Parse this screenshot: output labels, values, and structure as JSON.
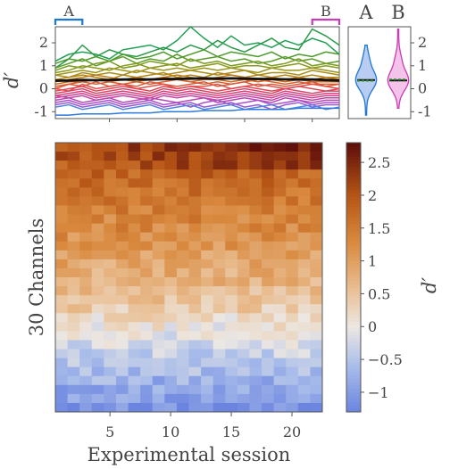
{
  "chart_data": [
    {
      "type": "line",
      "ylabel": "d′",
      "xlim": [
        1,
        22
      ],
      "ylim": [
        -1.3,
        2.7
      ],
      "yticks": [
        -1,
        0,
        1,
        2
      ],
      "x": [
        1,
        2,
        3,
        4,
        5,
        6,
        7,
        8,
        9,
        10,
        11,
        12,
        13,
        14,
        15,
        16,
        17,
        18,
        19,
        20,
        21,
        22
      ],
      "brackets": [
        {
          "label": "A",
          "from": 1,
          "to": 3,
          "color": "#1f77d4"
        },
        {
          "label": "B",
          "from": 20,
          "to": 22,
          "color": "#c83cb4"
        }
      ],
      "mean": {
        "color": "#111111",
        "values": [
          0.35,
          0.36,
          0.38,
          0.37,
          0.38,
          0.4,
          0.41,
          0.4,
          0.42,
          0.43,
          0.44,
          0.45,
          0.44,
          0.45,
          0.44,
          0.43,
          0.42,
          0.41,
          0.4,
          0.4,
          0.38,
          0.36
        ]
      },
      "series": [
        {
          "color": "#22a055",
          "values": [
            1.2,
            1.5,
            1.6,
            1.5,
            1.3,
            1.7,
            1.8,
            1.9,
            1.7,
            2.1,
            2.7,
            2.2,
            1.8,
            2.3,
            1.9,
            2.0,
            1.8,
            2.1,
            1.9,
            2.2,
            2.0,
            1.5
          ]
        },
        {
          "color": "#2a9a48",
          "values": [
            0.9,
            1.3,
            1.9,
            1.4,
            1.7,
            1.5,
            1.4,
            1.6,
            1.8,
            1.6,
            1.9,
            1.7,
            2.1,
            1.8,
            1.6,
            1.9,
            2.2,
            1.8,
            1.7,
            2.6,
            2.3,
            1.9
          ]
        },
        {
          "color": "#4c9a2a",
          "values": [
            1.1,
            1.3,
            1.2,
            1.4,
            1.2,
            1.5,
            1.3,
            1.4,
            1.6,
            1.3,
            1.5,
            1.7,
            1.4,
            1.6,
            1.5,
            1.4,
            1.6,
            1.3,
            1.5,
            1.4,
            1.6,
            1.5
          ]
        },
        {
          "color": "#5a9c2a",
          "values": [
            0.9,
            1.1,
            1.3,
            1.0,
            1.2,
            1.4,
            1.1,
            1.3,
            1.2,
            1.5,
            1.2,
            1.3,
            1.4,
            1.2,
            1.3,
            1.1,
            1.2,
            1.4,
            1.2,
            1.3,
            1.1,
            1.2
          ]
        },
        {
          "color": "#7a9a20",
          "values": [
            0.8,
            1.0,
            0.9,
            1.1,
            1.2,
            0.9,
            1.0,
            1.2,
            1.1,
            1.0,
            1.3,
            1.1,
            1.2,
            1.0,
            1.1,
            1.2,
            1.0,
            1.1,
            1.3,
            1.0,
            1.1,
            1.0
          ]
        },
        {
          "color": "#8a9a1c",
          "values": [
            0.7,
            0.8,
            1.0,
            0.9,
            0.8,
            1.0,
            1.1,
            0.9,
            1.0,
            1.1,
            0.9,
            1.0,
            1.1,
            0.9,
            1.0,
            1.0,
            0.9,
            1.0,
            1.1,
            0.9,
            1.0,
            0.9
          ]
        },
        {
          "color": "#9a9418",
          "values": [
            0.6,
            0.7,
            0.8,
            0.7,
            0.9,
            0.8,
            0.7,
            0.9,
            0.8,
            0.9,
            0.8,
            0.9,
            0.8,
            0.9,
            0.8,
            0.7,
            0.9,
            0.8,
            0.8,
            0.9,
            0.8,
            0.7
          ]
        },
        {
          "color": "#a88e16",
          "values": [
            0.6,
            0.5,
            0.7,
            0.6,
            0.7,
            0.6,
            0.8,
            0.7,
            0.6,
            0.7,
            0.8,
            0.7,
            0.6,
            0.7,
            0.8,
            0.6,
            0.7,
            0.7,
            0.6,
            0.8,
            0.7,
            0.6
          ]
        },
        {
          "color": "#b48414",
          "values": [
            0.4,
            0.5,
            0.6,
            0.5,
            0.4,
            0.6,
            0.5,
            0.6,
            0.7,
            0.5,
            0.6,
            0.5,
            0.7,
            0.6,
            0.5,
            0.6,
            0.5,
            0.6,
            0.5,
            0.6,
            0.5,
            0.5
          ]
        },
        {
          "color": "#c07a18",
          "values": [
            0.3,
            0.4,
            0.5,
            0.6,
            0.5,
            0.4,
            0.5,
            0.4,
            0.5,
            0.6,
            0.5,
            0.4,
            0.5,
            0.6,
            0.5,
            0.4,
            0.5,
            0.4,
            0.5,
            0.4,
            0.5,
            0.4
          ]
        },
        {
          "color": "#cc6c20",
          "values": [
            0.2,
            0.3,
            0.3,
            0.4,
            0.3,
            0.4,
            0.3,
            0.4,
            0.5,
            0.4,
            0.3,
            0.4,
            0.4,
            0.3,
            0.4,
            0.3,
            0.4,
            0.3,
            0.4,
            0.3,
            0.3,
            0.3
          ]
        },
        {
          "color": "#d6622e",
          "values": [
            0.1,
            0.2,
            0.3,
            0.2,
            0.3,
            0.2,
            0.3,
            0.2,
            0.3,
            0.4,
            0.3,
            0.2,
            0.3,
            0.2,
            0.3,
            0.4,
            0.3,
            0.2,
            0.3,
            0.2,
            0.2,
            0.2
          ]
        },
        {
          "color": "#dc5a3c",
          "values": [
            0.0,
            0.2,
            0.1,
            0.3,
            0.1,
            0.2,
            0.1,
            0.3,
            0.2,
            0.1,
            0.2,
            0.3,
            0.1,
            0.2,
            0.3,
            0.1,
            0.2,
            0.1,
            0.2,
            0.3,
            0.1,
            0.2
          ]
        },
        {
          "color": "#e05248",
          "values": [
            0.0,
            -0.1,
            0.2,
            0.0,
            0.1,
            0.2,
            0.0,
            0.1,
            0.2,
            0.0,
            0.1,
            0.1,
            0.2,
            0.0,
            0.1,
            0.2,
            0.1,
            0.0,
            0.1,
            0.2,
            0.1,
            0.0
          ]
        },
        {
          "color": "#e04a58",
          "values": [
            -0.1,
            0.0,
            0.1,
            -0.1,
            0.0,
            0.1,
            0.0,
            -0.1,
            0.1,
            0.0,
            0.1,
            0.0,
            -0.1,
            0.0,
            0.1,
            0.0,
            -0.1,
            0.0,
            0.1,
            0.0,
            -0.1,
            0.0
          ]
        },
        {
          "color": "#dc466a",
          "values": [
            -0.2,
            -0.1,
            0.0,
            -0.2,
            -0.1,
            0.0,
            -0.1,
            -0.2,
            0.0,
            -0.1,
            0.0,
            -0.1,
            -0.2,
            -0.1,
            0.0,
            -0.1,
            -0.2,
            0.0,
            -0.1,
            -0.2,
            -0.1,
            -0.1
          ]
        },
        {
          "color": "#d6447c",
          "values": [
            -0.3,
            -0.2,
            -0.1,
            -0.3,
            -0.2,
            -0.1,
            -0.2,
            -0.3,
            -0.1,
            -0.2,
            -0.1,
            -0.2,
            -0.3,
            -0.2,
            -0.1,
            -0.2,
            -0.3,
            -0.1,
            -0.2,
            -0.3,
            -0.2,
            -0.2
          ]
        },
        {
          "color": "#ce4490",
          "values": [
            -0.4,
            -0.3,
            -0.2,
            -0.4,
            -0.3,
            -0.2,
            -0.3,
            -0.4,
            -0.2,
            -0.3,
            -0.2,
            -0.3,
            -0.4,
            -0.3,
            -0.2,
            -0.3,
            -0.4,
            -0.2,
            -0.3,
            -0.4,
            -0.3,
            -0.3
          ]
        },
        {
          "color": "#c446a4",
          "values": [
            -0.3,
            -0.4,
            -0.3,
            -0.5,
            -0.4,
            -0.3,
            -0.4,
            -0.5,
            -0.3,
            -0.4,
            -0.3,
            -0.4,
            -0.5,
            -0.4,
            -0.3,
            -0.4,
            -0.5,
            -0.3,
            -0.4,
            -0.5,
            -0.4,
            -0.4
          ]
        },
        {
          "color": "#b84ab8",
          "values": [
            -0.5,
            -0.4,
            -0.6,
            -0.5,
            -0.4,
            -0.6,
            -0.5,
            -0.4,
            -0.5,
            -0.6,
            -0.5,
            -0.4,
            -0.6,
            -0.5,
            -0.4,
            -0.5,
            -0.6,
            -0.4,
            -0.5,
            -0.6,
            -0.5,
            -0.5
          ]
        },
        {
          "color": "#aa50c8",
          "values": [
            -0.6,
            -0.5,
            -0.7,
            -0.6,
            -0.5,
            -0.7,
            -0.6,
            -0.5,
            -0.7,
            -0.6,
            -0.8,
            -0.6,
            -0.5,
            -0.7,
            -0.6,
            -0.5,
            -0.7,
            -0.6,
            -0.5,
            -0.7,
            -0.6,
            -0.6
          ]
        },
        {
          "color": "#9c56d4",
          "values": [
            -0.7,
            -0.6,
            -0.8,
            -0.7,
            -0.6,
            -0.8,
            -0.7,
            -0.6,
            -0.8,
            -0.7,
            -0.6,
            -0.8,
            -0.7,
            -0.6,
            -0.8,
            -0.7,
            -0.9,
            -0.7,
            -0.6,
            -0.8,
            -0.7,
            -0.7
          ]
        },
        {
          "color": "#4d86e0",
          "values": [
            -0.8,
            -0.7,
            -0.9,
            -0.8,
            -0.7,
            -0.9,
            -0.8,
            -0.7,
            -0.9,
            -0.8,
            -0.7,
            -0.9,
            -0.8,
            -0.7,
            -0.9,
            -0.8,
            -0.7,
            -0.9,
            -0.8,
            -0.7,
            -0.9,
            -0.8
          ]
        },
        {
          "color": "#2f78dc",
          "values": [
            -1.15,
            -1.15,
            -1.1,
            -1.1,
            -1.1,
            -1.05,
            -1.05,
            -1.05,
            -1.0,
            -1.0,
            -1.0,
            -0.95,
            -0.95,
            -0.95,
            -0.9,
            -0.9,
            -0.9,
            -0.9,
            -0.85,
            -0.85,
            -0.85,
            -0.85
          ]
        }
      ]
    },
    {
      "type": "violin",
      "ylim": [
        -1.3,
        2.7
      ],
      "yticks": [
        -1,
        0,
        1,
        2
      ],
      "categories": [
        "A",
        "B"
      ],
      "colors": [
        "#1f77d4",
        "#c83cb4"
      ],
      "fills": [
        "#b9cdf2",
        "#f3c3ea"
      ],
      "median_color": "#2a8a2a",
      "means": [
        0.38,
        0.36
      ],
      "medians": [
        0.35,
        0.4
      ],
      "range": [
        [
          -1.15,
          1.9
        ],
        [
          -0.85,
          2.6
        ]
      ]
    },
    {
      "type": "heatmap",
      "xlabel": "Experimental session",
      "ylabel": "30 Channels",
      "colorbar_label": "d′",
      "n_rows": 30,
      "n_cols": 22,
      "xticks": [
        5,
        10,
        15,
        20
      ],
      "clim": [
        -1.3,
        2.8
      ],
      "colorbar_ticks": [
        -1,
        -0.5,
        0,
        0.5,
        1,
        1.5,
        2,
        2.5
      ],
      "colorbar_ticklabels": [
        "−1",
        "−0.5",
        "0",
        "0.5",
        "1",
        "1.5",
        "2",
        "2.5"
      ],
      "colormap": [
        [
          -1.3,
          "#6b84e0"
        ],
        [
          -0.6,
          "#a9bdea"
        ],
        [
          0.0,
          "#ece7e2"
        ],
        [
          0.6,
          "#e9bd90"
        ],
        [
          1.3,
          "#d9893e"
        ],
        [
          2.0,
          "#b65516"
        ],
        [
          2.8,
          "#5c0d0a"
        ]
      ],
      "row_base": [
        2.1,
        2.0,
        1.9,
        1.8,
        1.7,
        1.6,
        1.5,
        1.45,
        1.35,
        1.3,
        1.2,
        1.1,
        1.0,
        0.9,
        0.8,
        0.7,
        0.6,
        0.5,
        0.4,
        0.2,
        0.05,
        -0.05,
        -0.2,
        -0.35,
        -0.5,
        -0.6,
        -0.75,
        -0.85,
        -0.95,
        -1.15
      ]
    }
  ]
}
